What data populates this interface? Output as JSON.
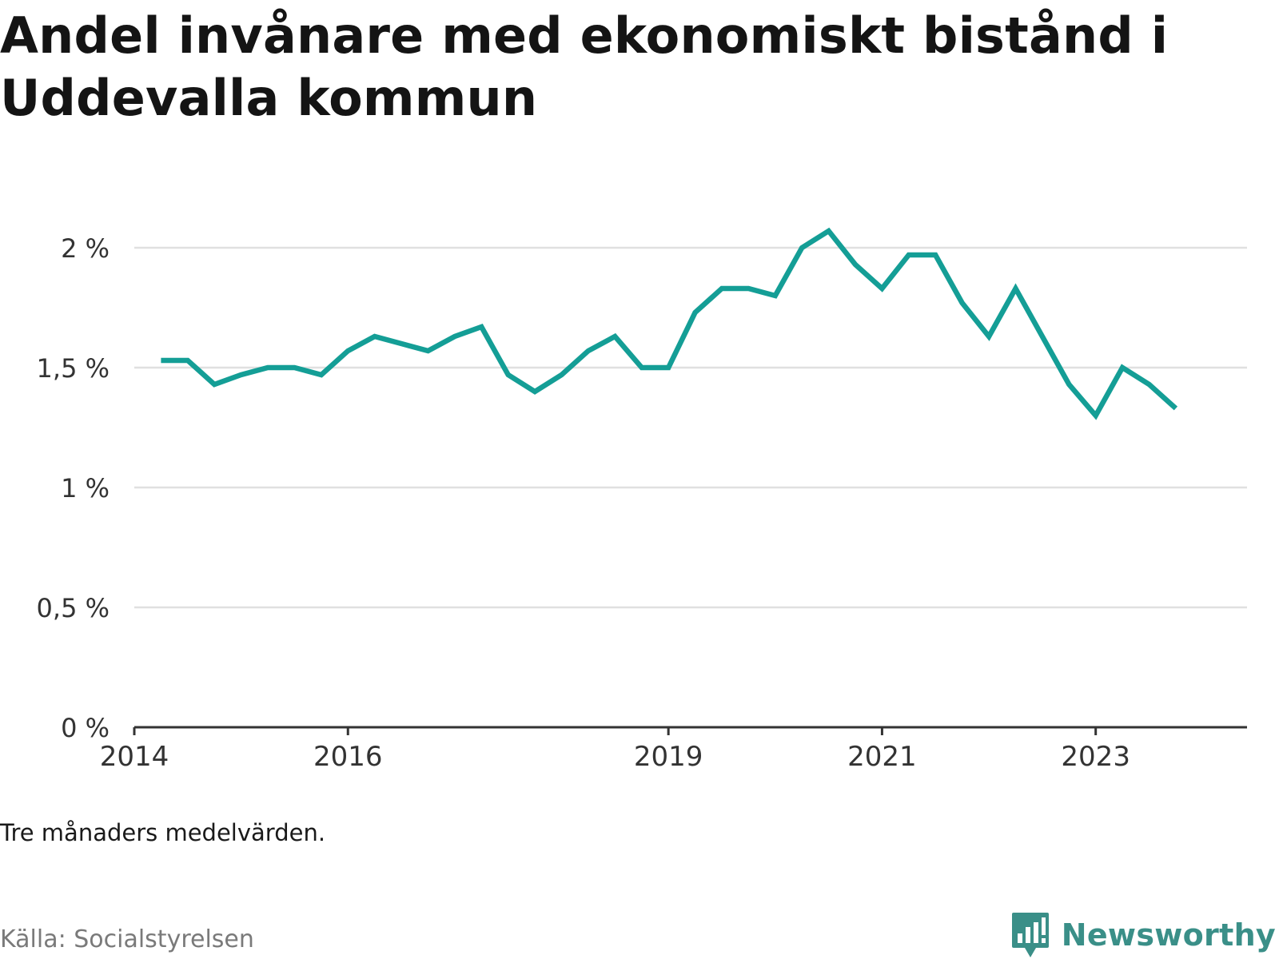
{
  "title": "Andel invånare med ekonomiskt bistånd i Uddevalla kommun",
  "note": "Tre månaders medelvärden.",
  "source": "Källa: Socialstyrelsen",
  "brand": {
    "name": "Newsworthy",
    "icon": "newsworthy-bar-chart-logo-icon"
  },
  "colors": {
    "line": "#149e96",
    "grid": "#e0e0e0",
    "axis": "#333333",
    "brand": "#3a8f88"
  },
  "chart_data": {
    "type": "line",
    "title": "Andel invånare med ekonomiskt bistånd i Uddevalla kommun",
    "xlabel": "",
    "ylabel": "",
    "ylim": [
      0,
      2.2
    ],
    "xlim": [
      "2014-01",
      "2024-06"
    ],
    "yticks": [
      {
        "value": 0,
        "label": "0 %"
      },
      {
        "value": 0.5,
        "label": "0,5 %"
      },
      {
        "value": 1,
        "label": "1 %"
      },
      {
        "value": 1.5,
        "label": "1,5 %"
      },
      {
        "value": 2,
        "label": "2 %"
      }
    ],
    "xticks": [
      {
        "value": "2014-01",
        "label": "2014"
      },
      {
        "value": "2016-01",
        "label": "2016"
      },
      {
        "value": "2019-01",
        "label": "2019"
      },
      {
        "value": "2021-01",
        "label": "2021"
      },
      {
        "value": "2023-01",
        "label": "2023"
      }
    ],
    "grid": true,
    "series": [
      {
        "name": "",
        "x": [
          "2014-04",
          "2014-07",
          "2014-10",
          "2015-01",
          "2015-04",
          "2015-07",
          "2015-10",
          "2016-01",
          "2016-04",
          "2016-07",
          "2016-10",
          "2017-01",
          "2017-04",
          "2017-07",
          "2017-10",
          "2018-01",
          "2018-04",
          "2018-07",
          "2018-10",
          "2019-01",
          "2019-04",
          "2019-07",
          "2019-10",
          "2020-01",
          "2020-04",
          "2020-07",
          "2020-10",
          "2021-01",
          "2021-04",
          "2021-07",
          "2021-10",
          "2022-01",
          "2022-04",
          "2022-07",
          "2022-10",
          "2023-01",
          "2023-04",
          "2023-07",
          "2023-10"
        ],
        "values": [
          1.53,
          1.53,
          1.43,
          1.47,
          1.5,
          1.5,
          1.47,
          1.57,
          1.63,
          1.6,
          1.57,
          1.63,
          1.67,
          1.47,
          1.4,
          1.47,
          1.57,
          1.63,
          1.5,
          1.5,
          1.73,
          1.83,
          1.83,
          1.8,
          2.0,
          2.07,
          1.93,
          1.83,
          1.97,
          1.97,
          1.77,
          1.63,
          1.83,
          1.63,
          1.43,
          1.3,
          1.5,
          1.43,
          1.33
        ]
      }
    ]
  }
}
